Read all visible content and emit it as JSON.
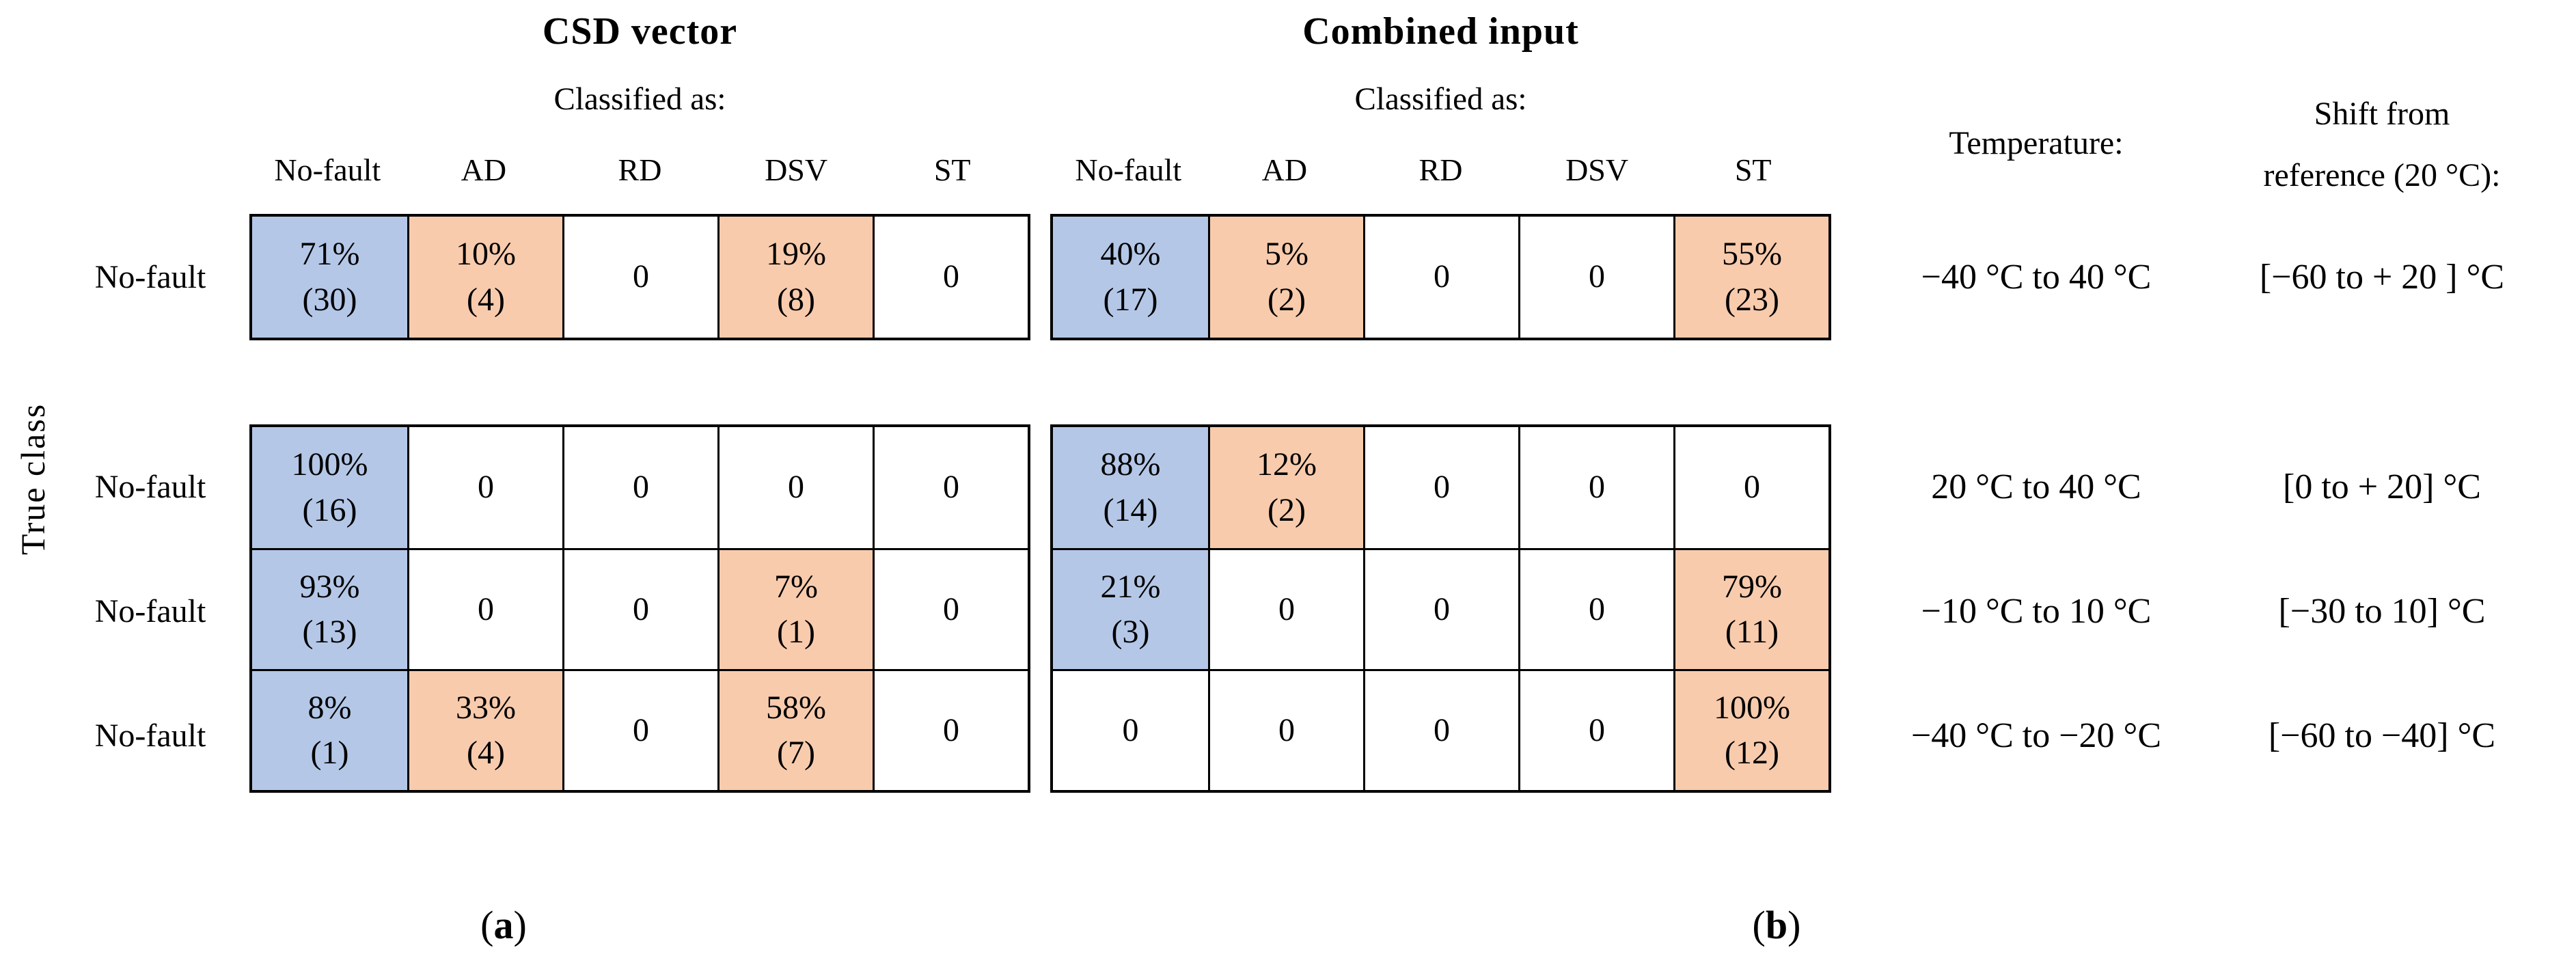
{
  "colors": {
    "blue": "#b4c7e7",
    "orange": "#f8cbad",
    "white": "#ffffff"
  },
  "axis": {
    "true_class": "True class"
  },
  "panels": [
    {
      "title": "CSD vector",
      "subtitle": "Classified as:",
      "caption_open": "(",
      "caption_letter": "a",
      "caption_close": ")",
      "columns": [
        "No-fault",
        "AD",
        "RD",
        "DSV",
        "ST"
      ],
      "rows": [
        {
          "label": "No-fault",
          "cells": [
            {
              "line1": "71%",
              "line2": "(30)",
              "fill": "blue"
            },
            {
              "line1": "10%",
              "line2": "(4)",
              "fill": "orange"
            },
            {
              "line1": "0",
              "line2": "",
              "fill": "white"
            },
            {
              "line1": "19%",
              "line2": "(8)",
              "fill": "orange"
            },
            {
              "line1": "0",
              "line2": "",
              "fill": "white"
            }
          ]
        },
        {
          "label": "No-fault",
          "cells": [
            {
              "line1": "100%",
              "line2": "(16)",
              "fill": "blue"
            },
            {
              "line1": "0",
              "line2": "",
              "fill": "white"
            },
            {
              "line1": "0",
              "line2": "",
              "fill": "white"
            },
            {
              "line1": "0",
              "line2": "",
              "fill": "white"
            },
            {
              "line1": "0",
              "line2": "",
              "fill": "white"
            }
          ]
        },
        {
          "label": "No-fault",
          "cells": [
            {
              "line1": "93%",
              "line2": "(13)",
              "fill": "blue"
            },
            {
              "line1": "0",
              "line2": "",
              "fill": "white"
            },
            {
              "line1": "0",
              "line2": "",
              "fill": "white"
            },
            {
              "line1": "7%",
              "line2": "(1)",
              "fill": "orange"
            },
            {
              "line1": "0",
              "line2": "",
              "fill": "white"
            }
          ]
        },
        {
          "label": "No-fault",
          "cells": [
            {
              "line1": "8%",
              "line2": "(1)",
              "fill": "blue"
            },
            {
              "line1": "33%",
              "line2": "(4)",
              "fill": "orange"
            },
            {
              "line1": "0",
              "line2": "",
              "fill": "white"
            },
            {
              "line1": "58%",
              "line2": "(7)",
              "fill": "orange"
            },
            {
              "line1": "0",
              "line2": "",
              "fill": "white"
            }
          ]
        }
      ]
    },
    {
      "title": "Combined input",
      "subtitle": "Classified as:",
      "caption_open": "(",
      "caption_letter": "b",
      "caption_close": ")",
      "columns": [
        "No-fault",
        "AD",
        "RD",
        "DSV",
        "ST"
      ],
      "rows": [
        {
          "label": "No-fault",
          "cells": [
            {
              "line1": "40%",
              "line2": "(17)",
              "fill": "blue"
            },
            {
              "line1": "5%",
              "line2": "(2)",
              "fill": "orange"
            },
            {
              "line1": "0",
              "line2": "",
              "fill": "white"
            },
            {
              "line1": "0",
              "line2": "",
              "fill": "white"
            },
            {
              "line1": "55%",
              "line2": "(23)",
              "fill": "orange"
            }
          ]
        },
        {
          "label": "No-fault",
          "cells": [
            {
              "line1": "88%",
              "line2": "(14)",
              "fill": "blue"
            },
            {
              "line1": "12%",
              "line2": "(2)",
              "fill": "orange"
            },
            {
              "line1": "0",
              "line2": "",
              "fill": "white"
            },
            {
              "line1": "0",
              "line2": "",
              "fill": "white"
            },
            {
              "line1": "0",
              "line2": "",
              "fill": "white"
            }
          ]
        },
        {
          "label": "No-fault",
          "cells": [
            {
              "line1": "21%",
              "line2": "(3)",
              "fill": "blue"
            },
            {
              "line1": "0",
              "line2": "",
              "fill": "white"
            },
            {
              "line1": "0",
              "line2": "",
              "fill": "white"
            },
            {
              "line1": "0",
              "line2": "",
              "fill": "white"
            },
            {
              "line1": "79%",
              "line2": "(11)",
              "fill": "orange"
            }
          ]
        },
        {
          "label": "No-fault",
          "cells": [
            {
              "line1": "0",
              "line2": "",
              "fill": "white"
            },
            {
              "line1": "0",
              "line2": "",
              "fill": "white"
            },
            {
              "line1": "0",
              "line2": "",
              "fill": "white"
            },
            {
              "line1": "0",
              "line2": "",
              "fill": "white"
            },
            {
              "line1": "100%",
              "line2": "(12)",
              "fill": "orange"
            }
          ]
        }
      ]
    }
  ],
  "temperature_panel": {
    "header": "Temperature:",
    "shift_header_line1": "Shift from",
    "shift_header_line2": "reference (20 °C):",
    "rows": [
      {
        "temperature": "−40 °C to 40 °C",
        "shift": "[−60 to + 20 ] °C"
      },
      {
        "temperature": "20 °C to 40 °C",
        "shift": "[0 to + 20] °C"
      },
      {
        "temperature": "−10 °C to 10 °C",
        "shift": "[−30 to 10] °C"
      },
      {
        "temperature": "−40 °C to −20 °C",
        "shift": "[−60 to −40] °C"
      }
    ]
  },
  "chart_data": [
    {
      "type": "heatmap",
      "title": "CSD vector",
      "xlabel": "Classified as:",
      "ylabel": "True class",
      "x_categories": [
        "No-fault",
        "AD",
        "RD",
        "DSV",
        "ST"
      ],
      "y_categories": [
        "No-fault",
        "No-fault",
        "No-fault",
        "No-fault"
      ],
      "row_conditions": [
        {
          "temperature": "−40 °C to 40 °C",
          "shift_from_reference": "[−60 to + 20 ] °C"
        },
        {
          "temperature": "20 °C to 40 °C",
          "shift_from_reference": "[0 to + 20] °C"
        },
        {
          "temperature": "−10 °C to 10 °C",
          "shift_from_reference": "[−30 to 10] °C"
        },
        {
          "temperature": "−40 °C to −20 °C",
          "shift_from_reference": "[−60 to −40] °C"
        }
      ],
      "percent": [
        [
          71,
          10,
          0,
          19,
          0
        ],
        [
          100,
          0,
          0,
          0,
          0
        ],
        [
          93,
          0,
          0,
          7,
          0
        ],
        [
          8,
          33,
          0,
          58,
          0
        ]
      ],
      "counts": [
        [
          30,
          4,
          0,
          8,
          0
        ],
        [
          16,
          0,
          0,
          0,
          0
        ],
        [
          13,
          0,
          0,
          1,
          0
        ],
        [
          1,
          4,
          0,
          7,
          0
        ]
      ],
      "cell_fill": [
        [
          "blue",
          "orange",
          "white",
          "orange",
          "white"
        ],
        [
          "blue",
          "white",
          "white",
          "white",
          "white"
        ],
        [
          "blue",
          "white",
          "white",
          "orange",
          "white"
        ],
        [
          "blue",
          "orange",
          "white",
          "orange",
          "white"
        ]
      ]
    },
    {
      "type": "heatmap",
      "title": "Combined input",
      "xlabel": "Classified as:",
      "ylabel": "True class",
      "x_categories": [
        "No-fault",
        "AD",
        "RD",
        "DSV",
        "ST"
      ],
      "y_categories": [
        "No-fault",
        "No-fault",
        "No-fault",
        "No-fault"
      ],
      "row_conditions": [
        {
          "temperature": "−40 °C to 40 °C",
          "shift_from_reference": "[−60 to + 20 ] °C"
        },
        {
          "temperature": "20 °C to 40 °C",
          "shift_from_reference": "[0 to + 20] °C"
        },
        {
          "temperature": "−10 °C to 10 °C",
          "shift_from_reference": "[−30 to 10] °C"
        },
        {
          "temperature": "−40 °C to −20 °C",
          "shift_from_reference": "[−60 to −40] °C"
        }
      ],
      "percent": [
        [
          40,
          5,
          0,
          0,
          55
        ],
        [
          88,
          12,
          0,
          0,
          0
        ],
        [
          21,
          0,
          0,
          0,
          79
        ],
        [
          0,
          0,
          0,
          0,
          100
        ]
      ],
      "counts": [
        [
          17,
          2,
          0,
          0,
          23
        ],
        [
          14,
          2,
          0,
          0,
          0
        ],
        [
          3,
          0,
          0,
          0,
          11
        ],
        [
          0,
          0,
          0,
          0,
          12
        ]
      ],
      "cell_fill": [
        [
          "blue",
          "orange",
          "white",
          "white",
          "orange"
        ],
        [
          "blue",
          "orange",
          "white",
          "white",
          "white"
        ],
        [
          "blue",
          "white",
          "white",
          "white",
          "orange"
        ],
        [
          "white",
          "white",
          "white",
          "white",
          "orange"
        ]
      ]
    }
  ]
}
